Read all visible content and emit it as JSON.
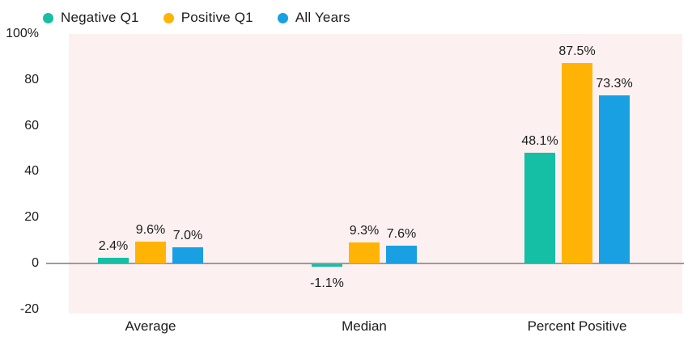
{
  "chart_data": {
    "type": "bar",
    "title": "",
    "categories": [
      "Average",
      "Median",
      "Percent Positive"
    ],
    "series": [
      {
        "name": "Negative Q1",
        "color": "#15BFA5",
        "values": [
          2.4,
          -1.1,
          48.1
        ],
        "labels": [
          "2.4%",
          "-1.1%",
          "48.1%"
        ]
      },
      {
        "name": "Positive Q1",
        "color": "#FFB405",
        "values": [
          9.6,
          9.3,
          87.5
        ],
        "labels": [
          "9.6%",
          "9.3%",
          "87.5%"
        ]
      },
      {
        "name": "All Years",
        "color": "#18A0E3",
        "values": [
          7.0,
          7.6,
          73.3
        ],
        "labels": [
          "7.0%",
          "7.6%",
          "73.3%"
        ]
      }
    ],
    "y_axis": {
      "ticks": [
        "100%",
        "80",
        "60",
        "40",
        "20",
        "0",
        "-20"
      ],
      "tick_values": [
        100,
        80,
        60,
        40,
        20,
        0,
        -20
      ],
      "ylim": [
        -20,
        100
      ]
    },
    "legend_position": "top",
    "grid": false,
    "plot_bg": "#FCF1F0",
    "axis_line_color": "#9B9B9B",
    "text_color": "#1C1C1C"
  }
}
